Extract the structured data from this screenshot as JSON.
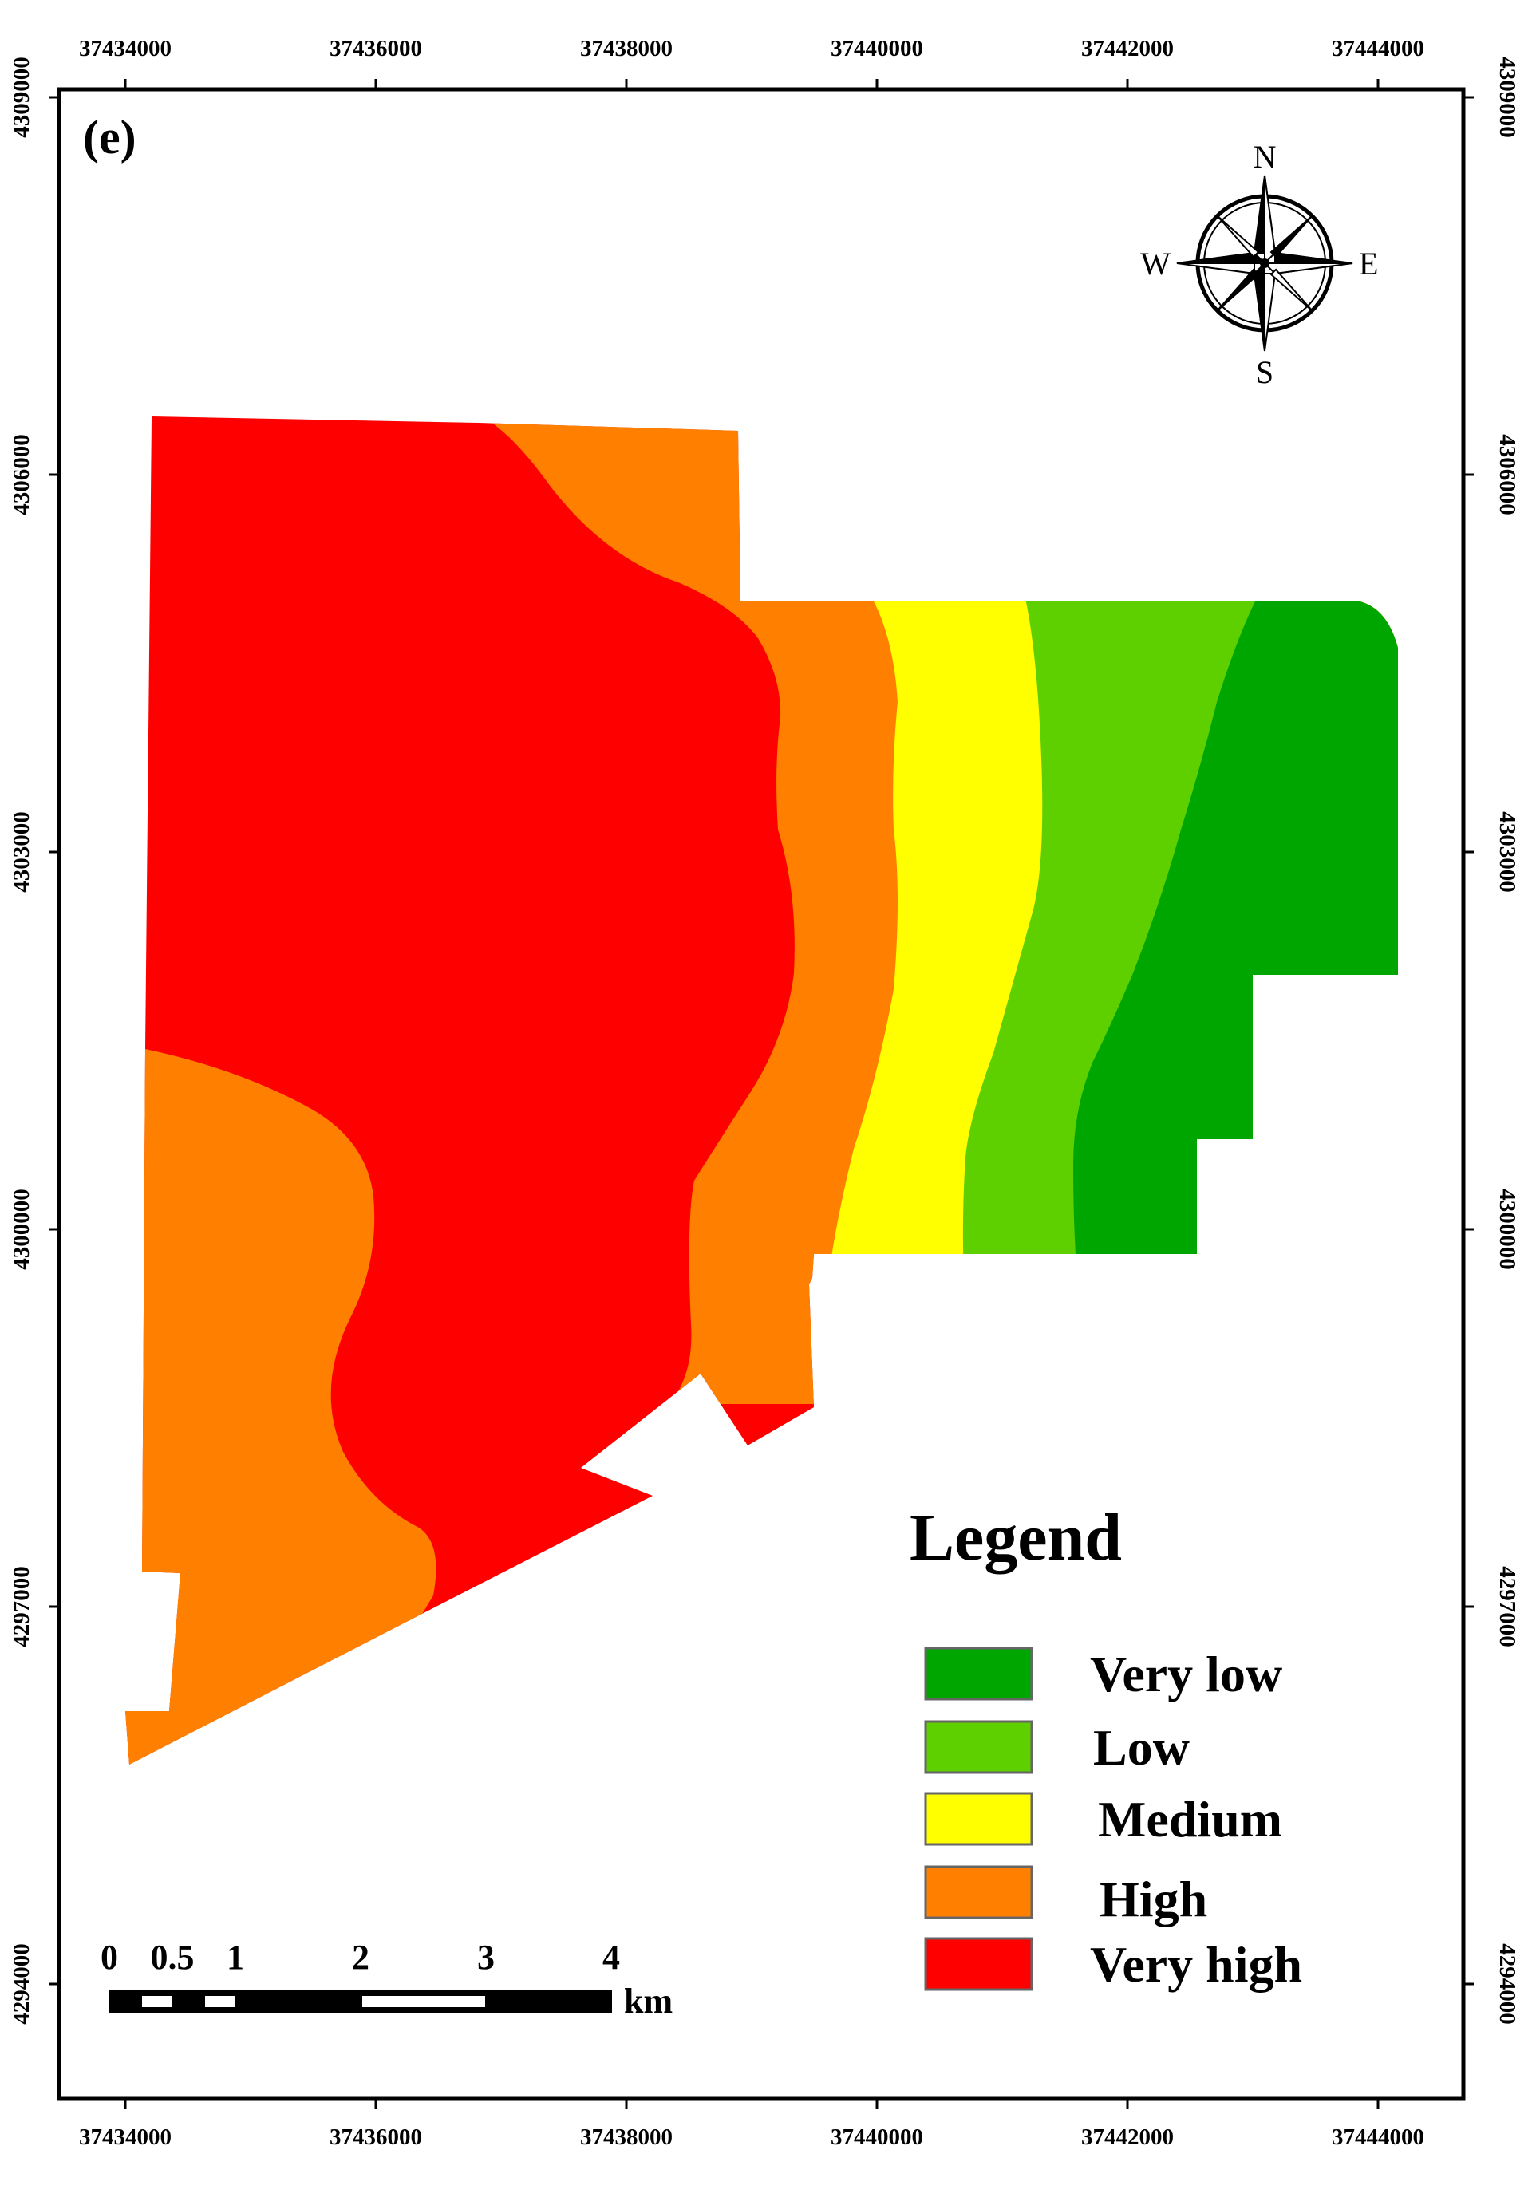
{
  "panel_label": "(e)",
  "x_ticks": [
    "37434000",
    "37436000",
    "37438000",
    "37440000",
    "37442000",
    "37444000"
  ],
  "y_ticks": [
    "4309000",
    "4306000",
    "4303000",
    "4300000",
    "4297000",
    "4294000"
  ],
  "compass": {
    "n": "N",
    "e": "E",
    "s": "S",
    "w": "W"
  },
  "legend": {
    "title": "Legend",
    "items": [
      {
        "label": "Very low",
        "color": "#00a600"
      },
      {
        "label": "Low",
        "color": "#5ed000"
      },
      {
        "label": "Medium",
        "color": "#ffff00"
      },
      {
        "label": "High",
        "color": "#ff8000"
      },
      {
        "label": "Very high",
        "color": "#ff0000"
      }
    ]
  },
  "scale_bar": {
    "labels": [
      "0",
      "0.5",
      "1",
      "2",
      "3",
      "4"
    ],
    "unit": "km"
  }
}
